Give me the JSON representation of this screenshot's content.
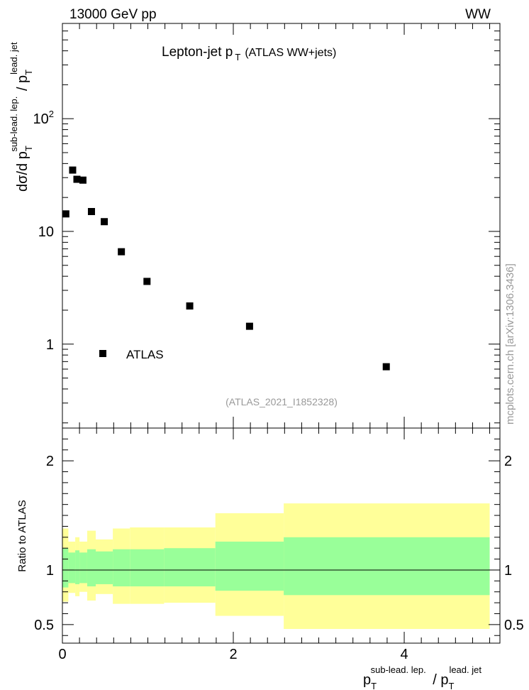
{
  "header": {
    "energy_label": "13000 GeV pp",
    "process_label": "WW"
  },
  "watermark": "mcplots.cern.ch [arXiv:1306.3436]",
  "chart_data": {
    "type": "scatter",
    "title_main": "Lepton-jet p",
    "title_sub": "T",
    "title_paren": "(ATLAS WW+jets)",
    "analysis_id": "(ATLAS_2021_I1852328)",
    "legend": {
      "label": "ATLAS",
      "placement": "lower-left"
    },
    "ylabel": {
      "d": "dσ/d p",
      "sub": "T",
      "sup": "sub-lead. lep.",
      "slash": " / p",
      "sub2": "T",
      "sup2": "lead. jet"
    },
    "xlabel": {
      "p": "p",
      "sub": "T",
      "sup": "sub-lead. lep.",
      "slash": " / p",
      "sub2": "T",
      "sup2": "lead. jet"
    },
    "main_yscale": "log",
    "main_ylim": [
      0.18,
      700
    ],
    "xlim": [
      0,
      5.12
    ],
    "y_tick_labels": [
      {
        "value": 1,
        "label": "1"
      },
      {
        "value": 10,
        "label": "10"
      },
      {
        "value": 100,
        "label": "10",
        "sup": "2"
      }
    ],
    "x_tick_labels": [
      {
        "value": 0,
        "label": "0"
      },
      {
        "value": 2,
        "label": "2"
      },
      {
        "value": 4,
        "label": "4"
      }
    ],
    "series": [
      {
        "name": "ATLAS",
        "points": [
          {
            "x": 0.04,
            "y": 14.3
          },
          {
            "x": 0.12,
            "y": 35.0
          },
          {
            "x": 0.17,
            "y": 29.0
          },
          {
            "x": 0.24,
            "y": 28.5
          },
          {
            "x": 0.34,
            "y": 15.0
          },
          {
            "x": 0.49,
            "y": 12.2
          },
          {
            "x": 0.69,
            "y": 6.6
          },
          {
            "x": 0.99,
            "y": 3.6
          },
          {
            "x": 1.49,
            "y": 2.18
          },
          {
            "x": 2.19,
            "y": 1.44
          },
          {
            "x": 3.79,
            "y": 0.63
          }
        ]
      }
    ],
    "ratio": {
      "ylabel": "Ratio to ATLAS",
      "ylim": [
        0.33,
        2.3
      ],
      "y_tick_labels": [
        {
          "value": 0.5,
          "label": "0.5"
        },
        {
          "value": 1,
          "label": "1"
        },
        {
          "value": 2,
          "label": "2"
        }
      ],
      "bins": [
        {
          "x0": 0.0,
          "x1": 0.07,
          "inner": [
            0.84,
            1.2
          ],
          "outer": [
            0.71,
            1.38
          ]
        },
        {
          "x0": 0.07,
          "x1": 0.15,
          "inner": [
            0.88,
            1.16
          ],
          "outer": [
            0.79,
            1.26
          ]
        },
        {
          "x0": 0.15,
          "x1": 0.2,
          "inner": [
            0.87,
            1.18
          ],
          "outer": [
            0.76,
            1.3
          ]
        },
        {
          "x0": 0.2,
          "x1": 0.29,
          "inner": [
            0.88,
            1.16
          ],
          "outer": [
            0.8,
            1.26
          ]
        },
        {
          "x0": 0.29,
          "x1": 0.39,
          "inner": [
            0.85,
            1.19
          ],
          "outer": [
            0.72,
            1.36
          ]
        },
        {
          "x0": 0.39,
          "x1": 0.59,
          "inner": [
            0.87,
            1.17
          ],
          "outer": [
            0.78,
            1.28
          ]
        },
        {
          "x0": 0.59,
          "x1": 0.79,
          "inner": [
            0.85,
            1.19
          ],
          "outer": [
            0.69,
            1.38
          ]
        },
        {
          "x0": 0.79,
          "x1": 1.19,
          "inner": [
            0.85,
            1.19
          ],
          "outer": [
            0.69,
            1.39
          ]
        },
        {
          "x0": 1.19,
          "x1": 1.79,
          "inner": [
            0.85,
            1.2
          ],
          "outer": [
            0.7,
            1.39
          ]
        },
        {
          "x0": 1.79,
          "x1": 2.59,
          "inner": [
            0.81,
            1.26
          ],
          "outer": [
            0.58,
            1.52
          ]
        },
        {
          "x0": 2.59,
          "x1": 5.0,
          "inner": [
            0.77,
            1.3
          ],
          "outer": [
            0.46,
            1.61
          ]
        }
      ],
      "colors": {
        "inner": "#99ff99",
        "outer": "#ffff99"
      }
    }
  }
}
